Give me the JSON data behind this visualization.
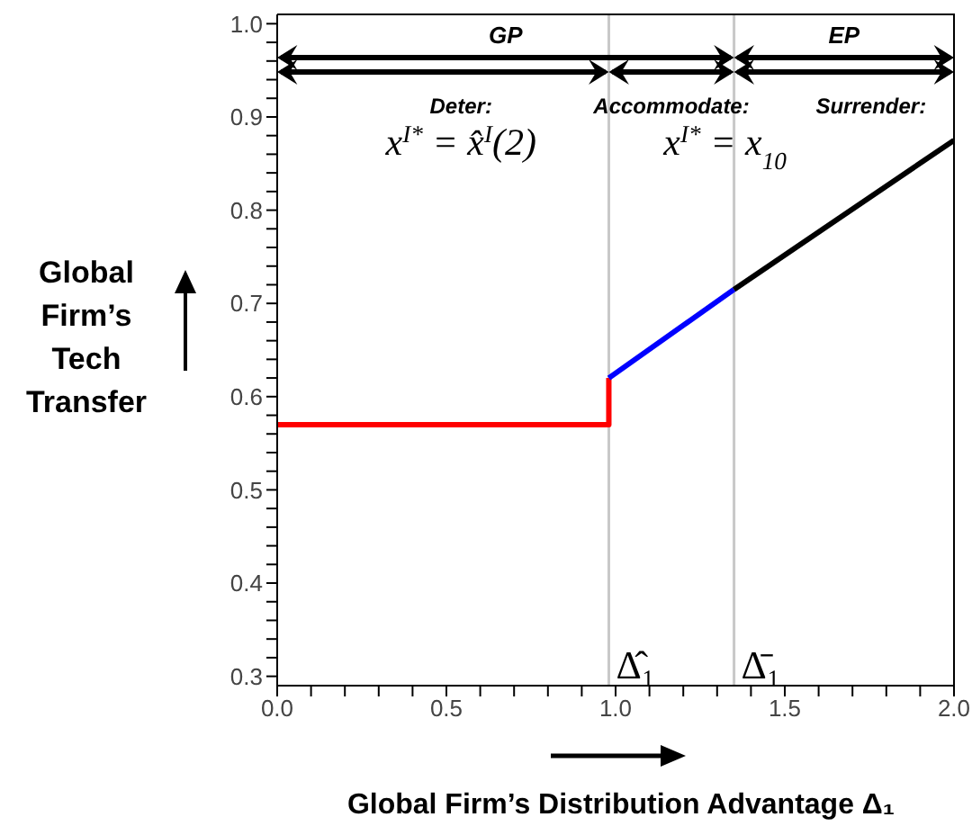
{
  "chart_data": {
    "type": "line",
    "xlabel": "Global Firm’s Distribution Advantage Δ₁",
    "ylabel": "Global Firm’s Tech Transfer",
    "xlim": [
      0,
      2.0
    ],
    "ylim": [
      0.29,
      1.01
    ],
    "xticks": [
      {
        "value": 0,
        "label": "0.0"
      },
      {
        "value": 0.1,
        "label": null
      },
      {
        "value": 0.2,
        "label": null
      },
      {
        "value": 0.3,
        "label": null
      },
      {
        "value": 0.4,
        "label": null
      },
      {
        "value": 0.5,
        "label": "0.5"
      },
      {
        "value": 0.6,
        "label": null
      },
      {
        "value": 0.7,
        "label": null
      },
      {
        "value": 0.8,
        "label": null
      },
      {
        "value": 0.9,
        "label": null
      },
      {
        "value": 1.0,
        "label": "1.0"
      },
      {
        "value": 1.1,
        "label": null
      },
      {
        "value": 1.2,
        "label": null
      },
      {
        "value": 1.3,
        "label": null
      },
      {
        "value": 1.4,
        "label": null
      },
      {
        "value": 1.5,
        "label": "1.5"
      },
      {
        "value": 1.6,
        "label": null
      },
      {
        "value": 1.7,
        "label": null
      },
      {
        "value": 1.8,
        "label": null
      },
      {
        "value": 1.9,
        "label": null
      },
      {
        "value": 2.0,
        "label": "2.0"
      }
    ],
    "yticks": [
      {
        "value": 0.3,
        "label": "0.3"
      },
      {
        "value": 0.32,
        "label": null
      },
      {
        "value": 0.34,
        "label": null
      },
      {
        "value": 0.36,
        "label": null
      },
      {
        "value": 0.38,
        "label": null
      },
      {
        "value": 0.4,
        "label": "0.4"
      },
      {
        "value": 0.42,
        "label": null
      },
      {
        "value": 0.44,
        "label": null
      },
      {
        "value": 0.46,
        "label": null
      },
      {
        "value": 0.48,
        "label": null
      },
      {
        "value": 0.5,
        "label": "0.5"
      },
      {
        "value": 0.52,
        "label": null
      },
      {
        "value": 0.54,
        "label": null
      },
      {
        "value": 0.56,
        "label": null
      },
      {
        "value": 0.58,
        "label": null
      },
      {
        "value": 0.6,
        "label": "0.6"
      },
      {
        "value": 0.62,
        "label": null
      },
      {
        "value": 0.64,
        "label": null
      },
      {
        "value": 0.66,
        "label": null
      },
      {
        "value": 0.68,
        "label": null
      },
      {
        "value": 0.7,
        "label": "0.7"
      },
      {
        "value": 0.72,
        "label": null
      },
      {
        "value": 0.74,
        "label": null
      },
      {
        "value": 0.76,
        "label": null
      },
      {
        "value": 0.78,
        "label": null
      },
      {
        "value": 0.8,
        "label": "0.8"
      },
      {
        "value": 0.82,
        "label": null
      },
      {
        "value": 0.84,
        "label": null
      },
      {
        "value": 0.86,
        "label": null
      },
      {
        "value": 0.88,
        "label": null
      },
      {
        "value": 0.9,
        "label": "0.9"
      },
      {
        "value": 0.92,
        "label": null
      },
      {
        "value": 0.94,
        "label": null
      },
      {
        "value": 0.96,
        "label": null
      },
      {
        "value": 0.98,
        "label": null
      },
      {
        "value": 1.0,
        "label": "1.0"
      }
    ],
    "series": [
      {
        "color": "#ff0000",
        "x": [
          0,
          0.98,
          0.98
        ],
        "values": [
          0.57,
          0.57,
          0.62
        ]
      },
      {
        "color": "#0000ff",
        "x": [
          0.98,
          1.35
        ],
        "values": [
          0.62,
          0.715
        ]
      },
      {
        "color": "#000000",
        "x": [
          1.35,
          2.0
        ],
        "values": [
          0.715,
          0.875
        ]
      }
    ],
    "ref_lines": [
      {
        "axis": "x",
        "value": 0.98,
        "label": "Δ̂₁",
        "color": "#c8c8c8"
      },
      {
        "axis": "x",
        "value": 1.35,
        "label": "Δ̄₁",
        "color": "#c8c8c8"
      }
    ],
    "annotations": [
      "GP",
      "EP",
      "Deter:",
      "Accommodate:",
      "Surrender:",
      "x$^{I*}$ = x̂$^{I}$(2)",
      "x$^{I*}$ = x$_{10}$"
    ],
    "grid": false,
    "marker": "none",
    "line_style": "solid"
  }
}
